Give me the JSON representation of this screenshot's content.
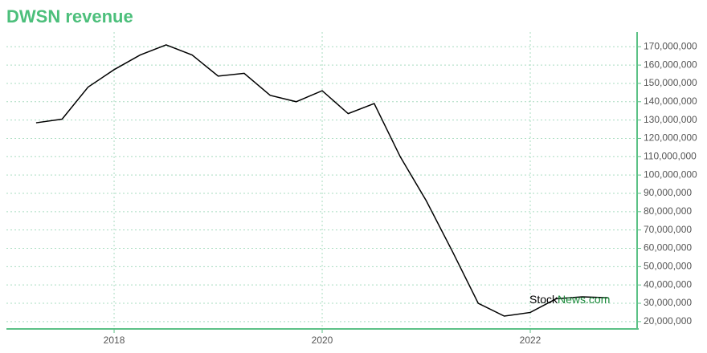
{
  "chart_data": {
    "type": "line",
    "title": "DWSN revenue",
    "x": [
      2017.25,
      2017.5,
      2017.75,
      2018,
      2018.25,
      2018.5,
      2018.75,
      2019,
      2019.25,
      2019.5,
      2019.75,
      2020,
      2020.25,
      2020.5,
      2020.75,
      2021,
      2021.25,
      2021.5,
      2021.75,
      2022,
      2022.25,
      2022.5,
      2022.75
    ],
    "series": [
      {
        "color": "#000000",
        "values": [
          128500000,
          130500000,
          148000000,
          157500000,
          165500000,
          171000000,
          165500000,
          154000000,
          155500000,
          143500000,
          140000000,
          146000000,
          133500000,
          139000000,
          110000000,
          86000000,
          58500000,
          30000000,
          23000000,
          25000000,
          32500000,
          33500000,
          33000000
        ]
      }
    ],
    "xlim": [
      2016.965,
      2023.027
    ],
    "xticks": [
      2018,
      2020,
      2022
    ],
    "ylim": [
      16000000,
      178000000
    ],
    "yticks": [
      {
        "value": 20000000,
        "label": "20,000,000"
      },
      {
        "value": 30000000,
        "label": "30,000,000"
      },
      {
        "value": 40000000,
        "label": "40,000,000"
      },
      {
        "value": 50000000,
        "label": "50,000,000"
      },
      {
        "value": 60000000,
        "label": "60,000,000"
      },
      {
        "value": 70000000,
        "label": "70,000,000"
      },
      {
        "value": 80000000,
        "label": "80,000,000"
      },
      {
        "value": 90000000,
        "label": "90,000,000"
      },
      {
        "value": 100000000,
        "label": "100,000,000"
      },
      {
        "value": 110000000,
        "label": "110,000,000"
      },
      {
        "value": 120000000,
        "label": "120,000,000"
      },
      {
        "value": 130000000,
        "label": "130,000,000"
      },
      {
        "value": 140000000,
        "label": "140,000,000"
      },
      {
        "value": 150000000,
        "label": "150,000,000"
      },
      {
        "value": 160000000,
        "label": "160,000,000"
      },
      {
        "value": 170000000,
        "label": "170,000,000"
      }
    ],
    "grid": true,
    "axis_color": "#5cc186",
    "grid_color": "#a8dcc0",
    "watermark": {
      "first": "Stock",
      "second": "News.com"
    }
  }
}
